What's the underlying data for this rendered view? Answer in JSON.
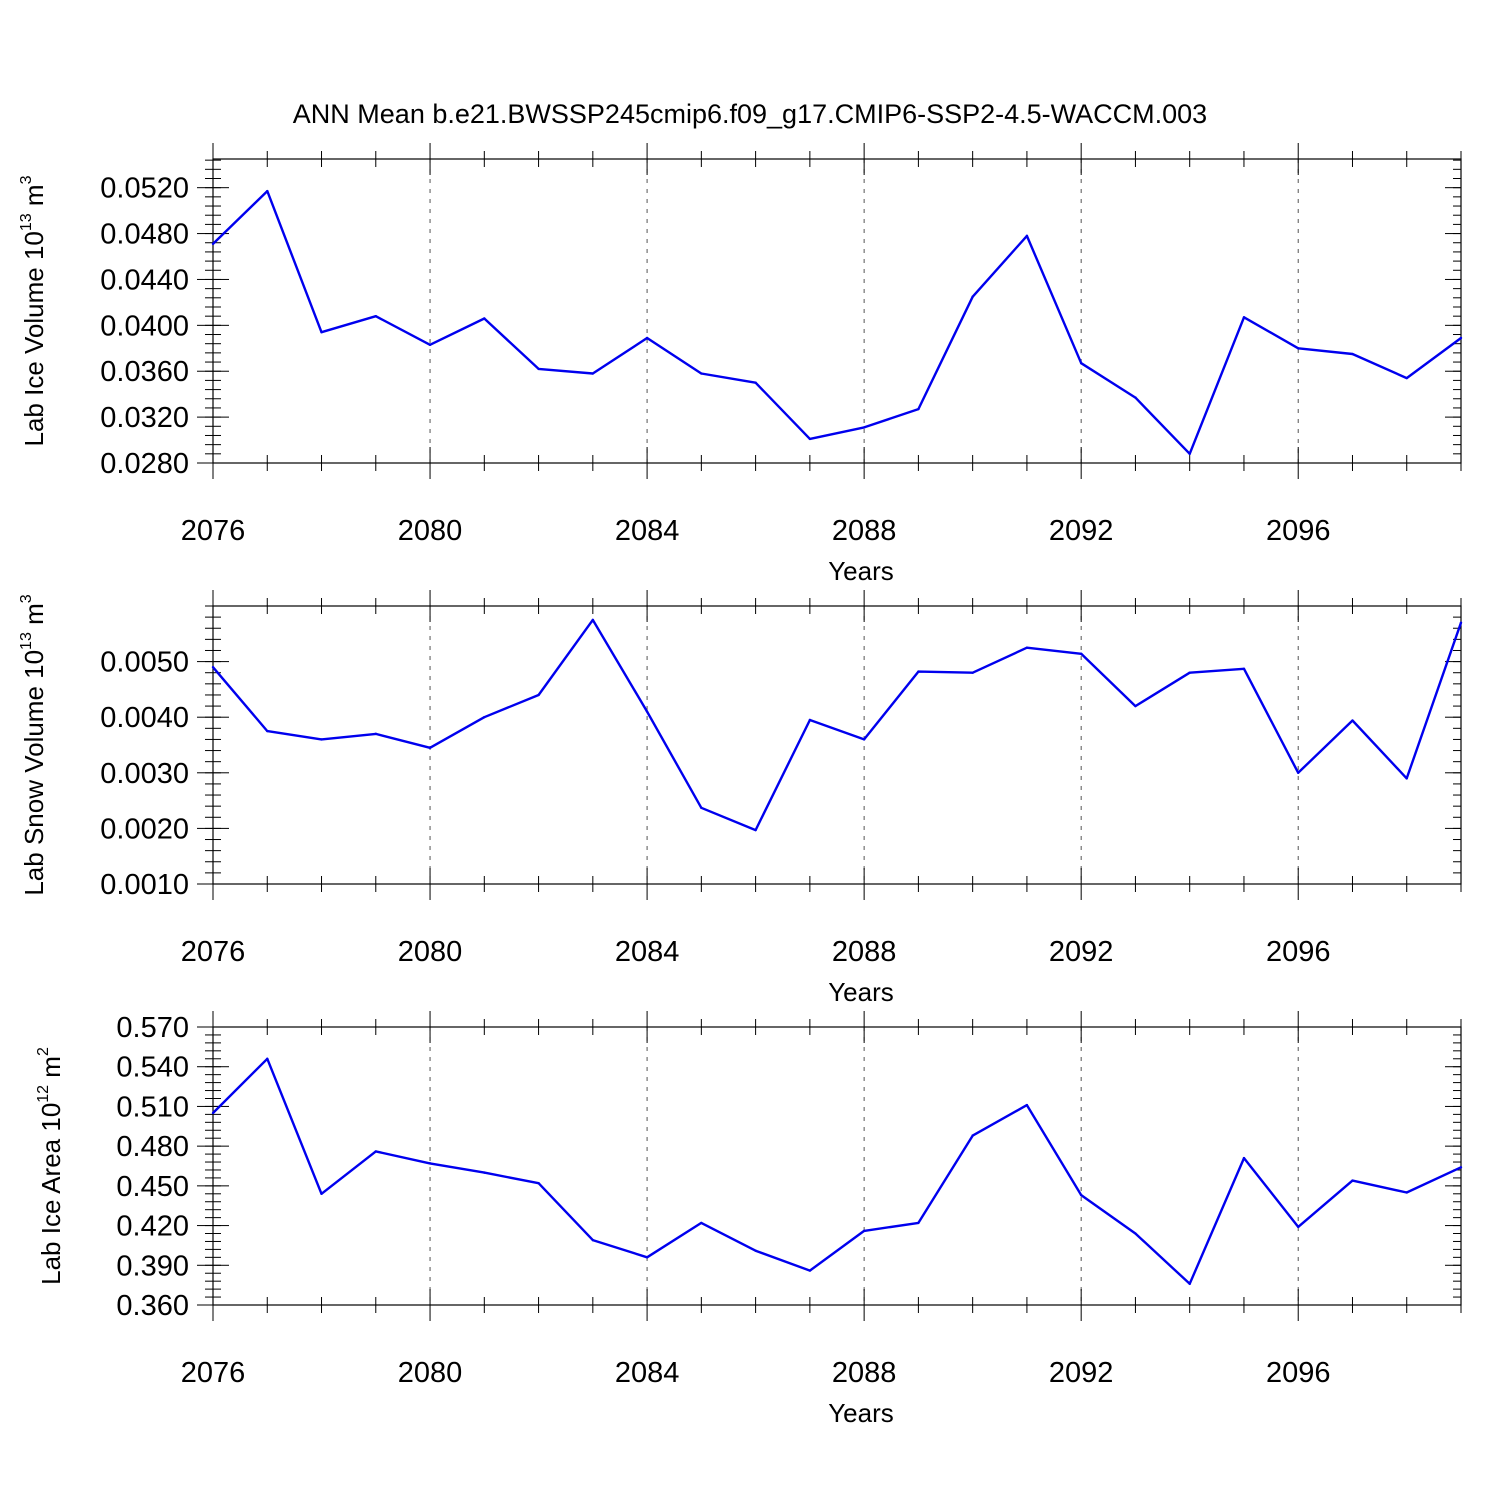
{
  "title": "ANN Mean b.e21.BWSSP245cmip6.f09_g17.CMIP6-SSP2-4.5-WACCM.003",
  "colors": {
    "series": "#0000ee",
    "axis": "#000000",
    "grid": "#555555"
  },
  "chart_data": [
    {
      "type": "line",
      "ylabel_main": "Lab Ice Volume 10",
      "ylabel_exp": "13",
      "ylabel_unit": " m",
      "ylabel_unit_exp": "3",
      "xlabel": "Years",
      "xlim": [
        2076,
        2099
      ],
      "ylim": [
        0.028,
        0.0545
      ],
      "x_ticks": [
        2076,
        2080,
        2084,
        2088,
        2092,
        2096
      ],
      "x_tick_labels": [
        "2076",
        "2080",
        "2084",
        "2088",
        "2092",
        "2096"
      ],
      "y_ticks": [
        0.028,
        0.032,
        0.036,
        0.04,
        0.044,
        0.048,
        0.052
      ],
      "y_tick_labels": [
        "0.0280",
        "0.0320",
        "0.0360",
        "0.0400",
        "0.0440",
        "0.0480",
        "0.0520"
      ],
      "y_minor_step": 0.0008,
      "x": [
        2076,
        2077,
        2078,
        2079,
        2080,
        2081,
        2082,
        2083,
        2084,
        2085,
        2086,
        2087,
        2088,
        2089,
        2090,
        2091,
        2092,
        2093,
        2094,
        2095,
        2096,
        2097,
        2098,
        2099
      ],
      "values": [
        0.0471,
        0.0517,
        0.0394,
        0.0408,
        0.0383,
        0.0406,
        0.0362,
        0.0358,
        0.0389,
        0.0358,
        0.035,
        0.0301,
        0.0311,
        0.0327,
        0.0425,
        0.0478,
        0.0367,
        0.0337,
        0.0288,
        0.0407,
        0.038,
        0.0375,
        0.0354,
        0.0389
      ],
      "grid": "dashed vertical at labeled x ticks"
    },
    {
      "type": "line",
      "ylabel_main": "Lab Snow Volume 10",
      "ylabel_exp": "13",
      "ylabel_unit": " m",
      "ylabel_unit_exp": "3",
      "xlabel": "Years",
      "xlim": [
        2076,
        2099
      ],
      "ylim": [
        0.001,
        0.006
      ],
      "x_ticks": [
        2076,
        2080,
        2084,
        2088,
        2092,
        2096
      ],
      "x_tick_labels": [
        "2076",
        "2080",
        "2084",
        "2088",
        "2092",
        "2096"
      ],
      "y_ticks": [
        0.001,
        0.002,
        0.003,
        0.004,
        0.005
      ],
      "y_tick_labels": [
        "0.0010",
        "0.0020",
        "0.0030",
        "0.0040",
        "0.0050"
      ],
      "y_minor_step": 0.0002,
      "x": [
        2076,
        2077,
        2078,
        2079,
        2080,
        2081,
        2082,
        2083,
        2084,
        2085,
        2086,
        2087,
        2088,
        2089,
        2090,
        2091,
        2092,
        2093,
        2094,
        2095,
        2096,
        2097,
        2098,
        2099
      ],
      "values": [
        0.0049,
        0.00375,
        0.0036,
        0.0037,
        0.00345,
        0.004,
        0.0044,
        0.00575,
        0.0041,
        0.00237,
        0.00197,
        0.00395,
        0.0036,
        0.00482,
        0.0048,
        0.00525,
        0.00514,
        0.0042,
        0.0048,
        0.00487,
        0.003,
        0.00394,
        0.0029,
        0.0057
      ],
      "grid": "dashed vertical at labeled x ticks"
    },
    {
      "type": "line",
      "ylabel_main": "Lab Ice Area 10",
      "ylabel_exp": "12",
      "ylabel_unit": " m",
      "ylabel_unit_exp": "2",
      "xlabel": "Years",
      "xlim": [
        2076,
        2099
      ],
      "ylim": [
        0.36,
        0.57
      ],
      "x_ticks": [
        2076,
        2080,
        2084,
        2088,
        2092,
        2096
      ],
      "x_tick_labels": [
        "2076",
        "2080",
        "2084",
        "2088",
        "2092",
        "2096"
      ],
      "y_ticks": [
        0.36,
        0.39,
        0.42,
        0.45,
        0.48,
        0.51,
        0.54,
        0.57
      ],
      "y_tick_labels": [
        "0.360",
        "0.390",
        "0.420",
        "0.450",
        "0.480",
        "0.510",
        "0.540",
        "0.570"
      ],
      "y_minor_step": 0.006,
      "x": [
        2076,
        2077,
        2078,
        2079,
        2080,
        2081,
        2082,
        2083,
        2084,
        2085,
        2086,
        2087,
        2088,
        2089,
        2090,
        2091,
        2092,
        2093,
        2094,
        2095,
        2096,
        2097,
        2098,
        2099
      ],
      "values": [
        0.505,
        0.546,
        0.444,
        0.476,
        0.467,
        0.46,
        0.452,
        0.409,
        0.396,
        0.422,
        0.401,
        0.386,
        0.416,
        0.422,
        0.488,
        0.511,
        0.443,
        0.414,
        0.376,
        0.471,
        0.419,
        0.454,
        0.445,
        0.464
      ],
      "grid": "dashed vertical at labeled x ticks"
    }
  ]
}
